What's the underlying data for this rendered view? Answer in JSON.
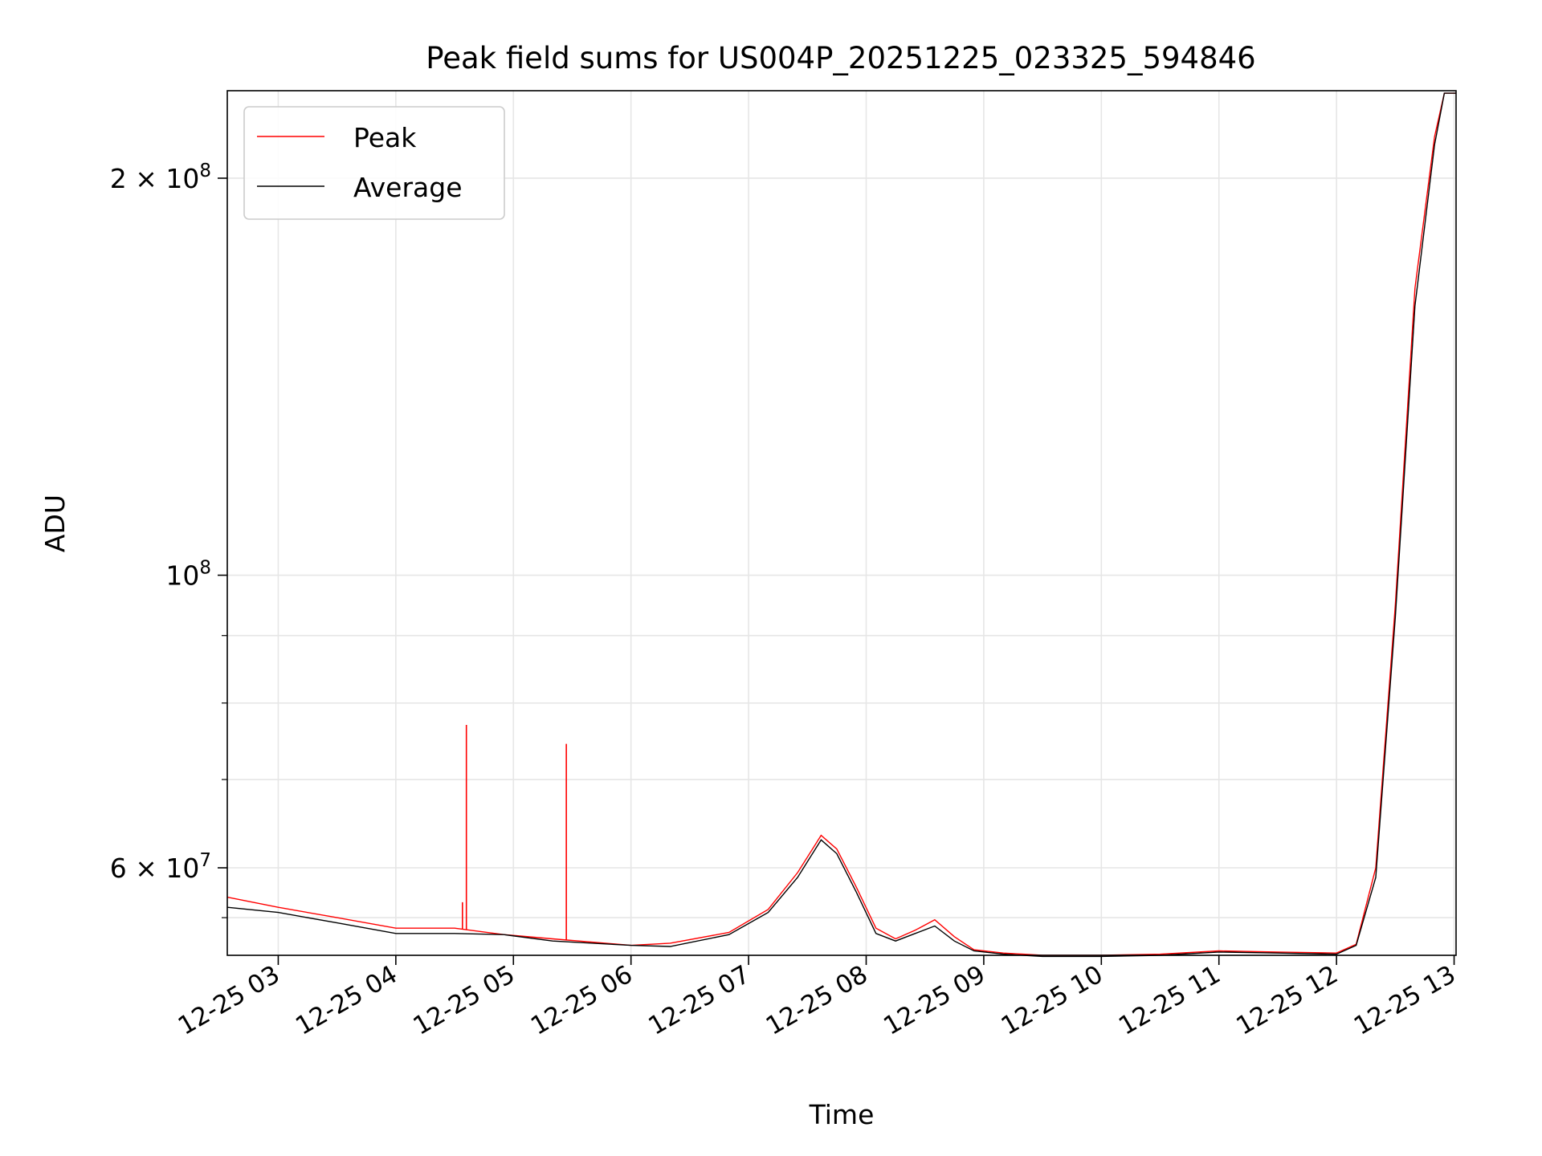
{
  "chart_data": {
    "type": "line",
    "title": "Peak field sums for US004P_20251225_023325_594846",
    "xlabel": "Time",
    "ylabel": "ADU",
    "y_scale": "log",
    "x_range": [
      "2025-12-25T02:34",
      "2025-12-25T13:01"
    ],
    "ylim": [
      51500000,
      233000000
    ],
    "grid": true,
    "legend_position": "top-left",
    "x_ticks": [
      {
        "t": "2025-12-25T03:00",
        "label": "12-25 03"
      },
      {
        "t": "2025-12-25T04:00",
        "label": "12-25 04"
      },
      {
        "t": "2025-12-25T05:00",
        "label": "12-25 05"
      },
      {
        "t": "2025-12-25T06:00",
        "label": "12-25 06"
      },
      {
        "t": "2025-12-25T07:00",
        "label": "12-25 07"
      },
      {
        "t": "2025-12-25T08:00",
        "label": "12-25 08"
      },
      {
        "t": "2025-12-25T09:00",
        "label": "12-25 09"
      },
      {
        "t": "2025-12-25T10:00",
        "label": "12-25 10"
      },
      {
        "t": "2025-12-25T11:00",
        "label": "12-25 11"
      },
      {
        "t": "2025-12-25T12:00",
        "label": "12-25 12"
      },
      {
        "t": "2025-12-25T13:00",
        "label": "12-25 13"
      }
    ],
    "y_ticks_major": [
      {
        "v": 200000000,
        "base": "2 × 10",
        "exp": "8"
      },
      {
        "v": 100000000,
        "base": "10",
        "exp": "8"
      },
      {
        "v": 60000000,
        "base": "6 × 10",
        "exp": "7"
      }
    ],
    "y_ticks_minor": [
      90000000,
      80000000,
      70000000,
      55000000
    ],
    "series": [
      {
        "name": "Peak",
        "color": "#ff0000",
        "x": [
          "2025-12-25T02:34",
          "2025-12-25T03:00",
          "2025-12-25T03:30",
          "2025-12-25T04:00",
          "2025-12-25T04:30",
          "2025-12-25T04:55",
          "2025-12-25T05:20",
          "2025-12-25T06:00",
          "2025-12-25T06:20",
          "2025-12-25T06:50",
          "2025-12-25T07:10",
          "2025-12-25T07:25",
          "2025-12-25T07:37",
          "2025-12-25T07:45",
          "2025-12-25T07:55",
          "2025-12-25T08:05",
          "2025-12-25T08:15",
          "2025-12-25T08:25",
          "2025-12-25T08:35",
          "2025-12-25T08:45",
          "2025-12-25T08:55",
          "2025-12-25T09:10",
          "2025-12-25T09:30",
          "2025-12-25T10:00",
          "2025-12-25T10:30",
          "2025-12-25T11:00",
          "2025-12-25T11:30",
          "2025-12-25T12:00",
          "2025-12-25T12:10",
          "2025-12-25T12:20",
          "2025-12-25T12:30",
          "2025-12-25T12:40",
          "2025-12-25T12:50",
          "2025-12-25T12:55",
          "2025-12-25T13:01"
        ],
        "y": [
          57000000,
          56000000,
          55000000,
          54000000,
          54000000,
          53400000,
          53000000,
          52400000,
          52600000,
          53600000,
          55800000,
          59500000,
          63500000,
          62000000,
          58000000,
          54000000,
          53000000,
          53800000,
          54800000,
          53200000,
          52000000,
          51700000,
          51500000,
          51500000,
          51600000,
          51900000,
          51800000,
          51700000,
          52500000,
          60000000,
          95000000,
          165000000,
          215000000,
          232000000,
          232000000
        ],
        "spikes": [
          {
            "x": "2025-12-25T04:36",
            "y": 77000000
          },
          {
            "x": "2025-12-25T04:34",
            "y": 56500000
          },
          {
            "x": "2025-12-25T05:27",
            "y": 74500000
          }
        ]
      },
      {
        "name": "Average",
        "color": "#000000",
        "x": [
          "2025-12-25T02:34",
          "2025-12-25T03:00",
          "2025-12-25T03:30",
          "2025-12-25T04:00",
          "2025-12-25T04:30",
          "2025-12-25T04:55",
          "2025-12-25T05:20",
          "2025-12-25T06:00",
          "2025-12-25T06:20",
          "2025-12-25T06:50",
          "2025-12-25T07:10",
          "2025-12-25T07:25",
          "2025-12-25T07:37",
          "2025-12-25T07:45",
          "2025-12-25T07:55",
          "2025-12-25T08:05",
          "2025-12-25T08:15",
          "2025-12-25T08:25",
          "2025-12-25T08:35",
          "2025-12-25T08:45",
          "2025-12-25T08:55",
          "2025-12-25T09:10",
          "2025-12-25T09:30",
          "2025-12-25T10:00",
          "2025-12-25T10:30",
          "2025-12-25T11:00",
          "2025-12-25T11:30",
          "2025-12-25T12:00",
          "2025-12-25T12:10",
          "2025-12-25T12:20",
          "2025-12-25T12:30",
          "2025-12-25T12:40",
          "2025-12-25T12:50",
          "2025-12-25T12:55",
          "2025-12-25T13:01"
        ],
        "y": [
          56000000,
          55500000,
          54500000,
          53500000,
          53500000,
          53400000,
          52800000,
          52400000,
          52300000,
          53400000,
          55500000,
          59000000,
          63000000,
          61500000,
          57500000,
          53500000,
          52800000,
          53500000,
          54200000,
          52800000,
          51900000,
          51600000,
          51400000,
          51400000,
          51500000,
          51800000,
          51700000,
          51600000,
          52400000,
          59000000,
          93000000,
          160000000,
          212000000,
          232000000,
          232000000
        ]
      }
    ]
  }
}
